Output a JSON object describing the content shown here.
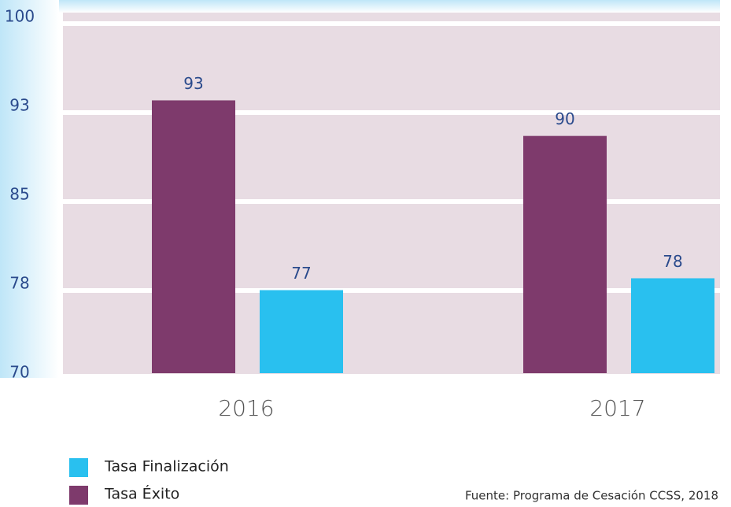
{
  "chart_data": {
    "type": "bar",
    "categories": [
      "2016",
      "2017"
    ],
    "series": [
      {
        "name": "Tasa Éxito",
        "color": "#7e3a6c",
        "values": [
          93,
          90
        ]
      },
      {
        "name": "Tasa Finalización",
        "color": "#29c0ef",
        "values": [
          77,
          78
        ]
      }
    ],
    "ylim": [
      70,
      100
    ],
    "yticks": [
      70,
      {
        "value": 77.5,
        "label": "78"
      },
      85,
      {
        "value": 92.5,
        "label": "93"
      },
      100
    ],
    "grid": true,
    "source": "Fuente: Programa de Cesación CCSS, 2018"
  }
}
